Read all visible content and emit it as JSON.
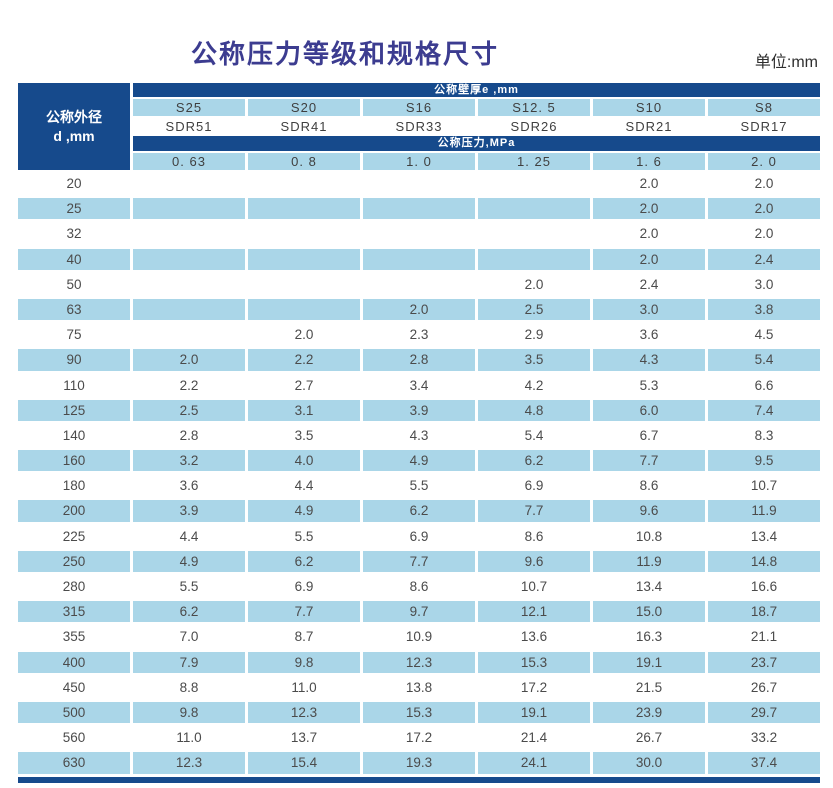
{
  "page": {
    "title": "公称压力等级和规格尺寸",
    "unit_label": "单位:mm"
  },
  "colors": {
    "dark_blue": "#164a8c",
    "light_blue": "#aad6e8",
    "title_color": "#3c3c90",
    "text_color": "#4b4b4b"
  },
  "table": {
    "row_header": {
      "line1": "公称外径",
      "line2": "d ,mm"
    },
    "thickness_band_label": "公称壁厚e ,mm",
    "pressure_band_label": "公称压力,MPa",
    "s_series": [
      "S25",
      "S20",
      "S16",
      "S12. 5",
      "S10",
      "S8"
    ],
    "sdr_series": [
      "SDR51",
      "SDR41",
      "SDR33",
      "SDR26",
      "SDR21",
      "SDR17"
    ],
    "pressures_mpa": [
      "0. 63",
      "0. 8",
      "1. 0",
      "1. 25",
      "1. 6",
      "2. 0"
    ],
    "rows": [
      {
        "d": "20",
        "values": [
          "",
          "",
          "",
          "",
          "2.0",
          "2.0"
        ]
      },
      {
        "d": "25",
        "values": [
          "",
          "",
          "",
          "",
          "2.0",
          "2.0"
        ]
      },
      {
        "d": "32",
        "values": [
          "",
          "",
          "",
          "",
          "2.0",
          "2.0"
        ]
      },
      {
        "d": "40",
        "values": [
          "",
          "",
          "",
          "",
          "2.0",
          "2.4"
        ]
      },
      {
        "d": "50",
        "values": [
          "",
          "",
          "",
          "2.0",
          "2.4",
          "3.0"
        ]
      },
      {
        "d": "63",
        "values": [
          "",
          "",
          "2.0",
          "2.5",
          "3.0",
          "3.8"
        ]
      },
      {
        "d": "75",
        "values": [
          "",
          "2.0",
          "2.3",
          "2.9",
          "3.6",
          "4.5"
        ]
      },
      {
        "d": "90",
        "values": [
          "2.0",
          "2.2",
          "2.8",
          "3.5",
          "4.3",
          "5.4"
        ]
      },
      {
        "d": "110",
        "values": [
          "2.2",
          "2.7",
          "3.4",
          "4.2",
          "5.3",
          "6.6"
        ]
      },
      {
        "d": "125",
        "values": [
          "2.5",
          "3.1",
          "3.9",
          "4.8",
          "6.0",
          "7.4"
        ]
      },
      {
        "d": "140",
        "values": [
          "2.8",
          "3.5",
          "4.3",
          "5.4",
          "6.7",
          "8.3"
        ]
      },
      {
        "d": "160",
        "values": [
          "3.2",
          "4.0",
          "4.9",
          "6.2",
          "7.7",
          "9.5"
        ]
      },
      {
        "d": "180",
        "values": [
          "3.6",
          "4.4",
          "5.5",
          "6.9",
          "8.6",
          "10.7"
        ]
      },
      {
        "d": "200",
        "values": [
          "3.9",
          "4.9",
          "6.2",
          "7.7",
          "9.6",
          "11.9"
        ]
      },
      {
        "d": "225",
        "values": [
          "4.4",
          "5.5",
          "6.9",
          "8.6",
          "10.8",
          "13.4"
        ]
      },
      {
        "d": "250",
        "values": [
          "4.9",
          "6.2",
          "7.7",
          "9.6",
          "11.9",
          "14.8"
        ]
      },
      {
        "d": "280",
        "values": [
          "5.5",
          "6.9",
          "8.6",
          "10.7",
          "13.4",
          "16.6"
        ]
      },
      {
        "d": "315",
        "values": [
          "6.2",
          "7.7",
          "9.7",
          "12.1",
          "15.0",
          "18.7"
        ]
      },
      {
        "d": "355",
        "values": [
          "7.0",
          "8.7",
          "10.9",
          "13.6",
          "16.3",
          "21.1"
        ]
      },
      {
        "d": "400",
        "values": [
          "7.9",
          "9.8",
          "12.3",
          "15.3",
          "19.1",
          "23.7"
        ]
      },
      {
        "d": "450",
        "values": [
          "8.8",
          "11.0",
          "13.8",
          "17.2",
          "21.5",
          "26.7"
        ]
      },
      {
        "d": "500",
        "values": [
          "9.8",
          "12.3",
          "15.3",
          "19.1",
          "23.9",
          "29.7"
        ]
      },
      {
        "d": "560",
        "values": [
          "11.0",
          "13.7",
          "17.2",
          "21.4",
          "26.7",
          "33.2"
        ]
      },
      {
        "d": "630",
        "values": [
          "12.3",
          "15.4",
          "19.3",
          "24.1",
          "30.0",
          "37.4"
        ]
      }
    ]
  }
}
